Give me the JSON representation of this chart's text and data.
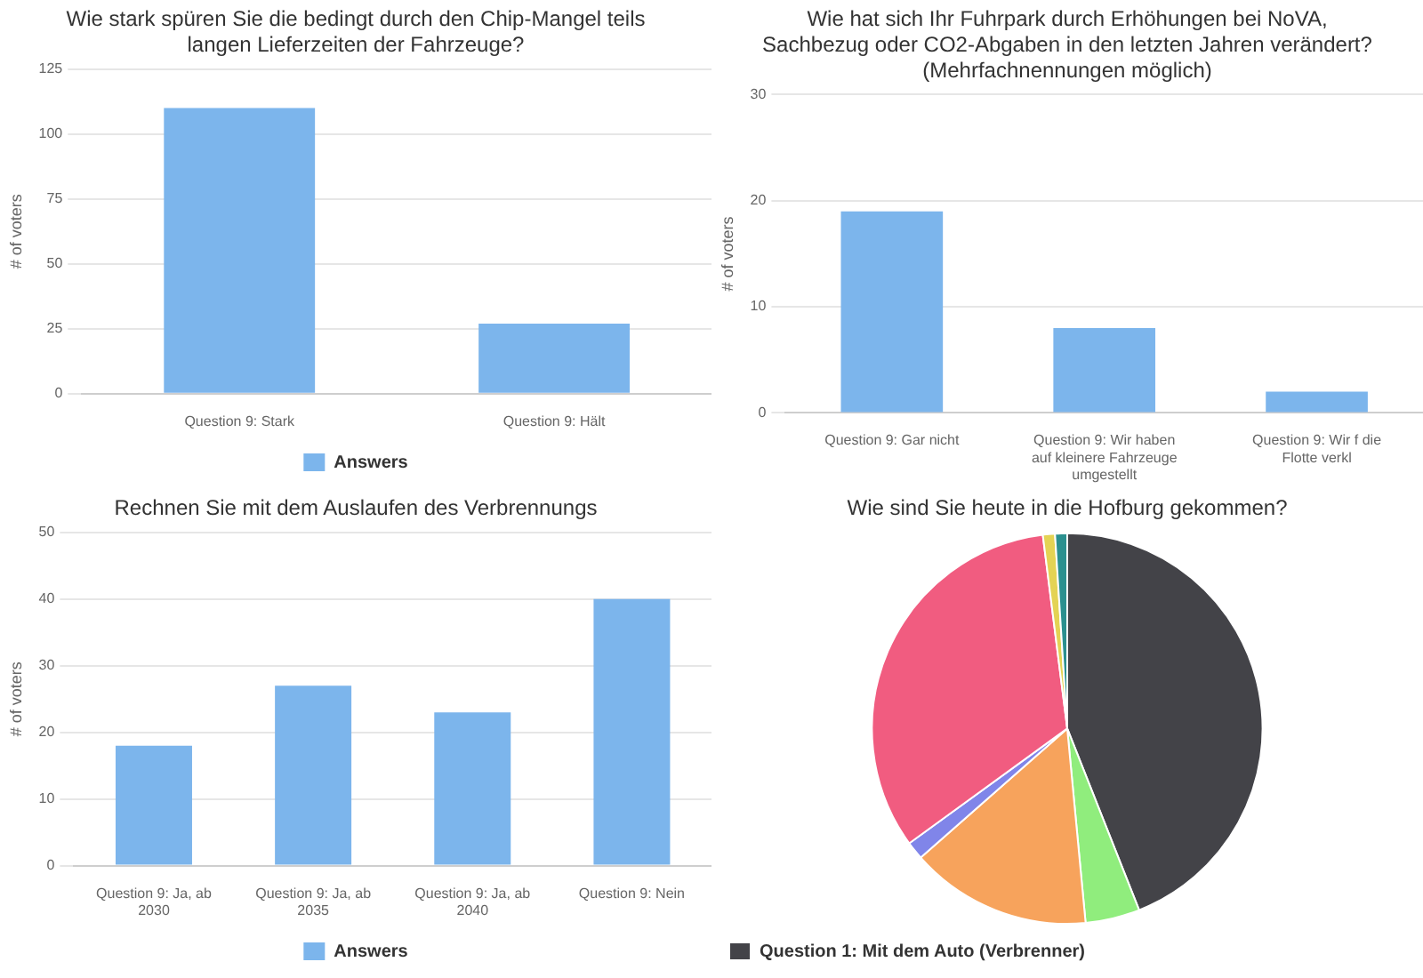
{
  "chart_data": [
    {
      "type": "bar",
      "title": "Wie stark spüren Sie die bedingt durch den Chip-Mangel teils langen Lieferzeiten der Fahrzeuge?",
      "ylabel": "# of voters",
      "categories": [
        "Question 9: Stark",
        "Question 9: Hält"
      ],
      "series": [
        {
          "name": "Answers",
          "color": "#7cb5ec",
          "values": [
            110,
            27
          ]
        }
      ],
      "ylim": [
        0,
        125
      ],
      "yticks": [
        0,
        25,
        50,
        75,
        100,
        125
      ],
      "grid": "y",
      "legend": "bottom"
    },
    {
      "type": "bar",
      "title": "Wie hat sich Ihr Fuhrpark durch Erhöhungen bei NoVA, Sachbezug oder CO2-Abgaben in den letzten Jahren verändert? (Mehrfachnennungen möglich)",
      "ylabel": "# of voters",
      "categories": [
        "Question 9: Gar nicht",
        "Question 9: Wir haben auf kleinere Fahrzeuge umgestellt",
        "Question 9: Wir f die Flotte verkl"
      ],
      "series": [
        {
          "color": "#7cb5ec",
          "values": [
            19,
            8,
            2
          ]
        }
      ],
      "ylim": [
        0,
        30
      ],
      "yticks": [
        0,
        10,
        20,
        30
      ],
      "grid": "y"
    },
    {
      "type": "bar",
      "title": "Rechnen Sie mit dem Auslaufen des Verbrennungs",
      "ylabel": "# of voters",
      "categories": [
        "Question 9: Ja, ab 2030",
        "Question 9: Ja, ab 2035",
        "Question 9: Ja, ab 2040",
        "Question 9: Nein"
      ],
      "series": [
        {
          "name": "Answers",
          "color": "#7cb5ec",
          "values": [
            18,
            27,
            23,
            40
          ]
        }
      ],
      "ylim": [
        0,
        50
      ],
      "yticks": [
        0,
        10,
        20,
        30,
        40,
        50
      ],
      "grid": "y",
      "legend": "bottom"
    },
    {
      "type": "pie",
      "title": "Wie sind Sie heute in die Hofburg gekommen?",
      "categories": [
        "Question 1: Mit dem Auto (Verbrenner)",
        null,
        null,
        null,
        null,
        null,
        null
      ],
      "values": [
        44,
        4.5,
        15,
        1.5,
        33,
        1,
        1
      ],
      "colors": [
        "#434348",
        "#90ed7d",
        "#f7a35c",
        "#8085e9",
        "#f15c80",
        "#e4d354",
        "#2b908f"
      ],
      "legend": "bottom"
    }
  ]
}
